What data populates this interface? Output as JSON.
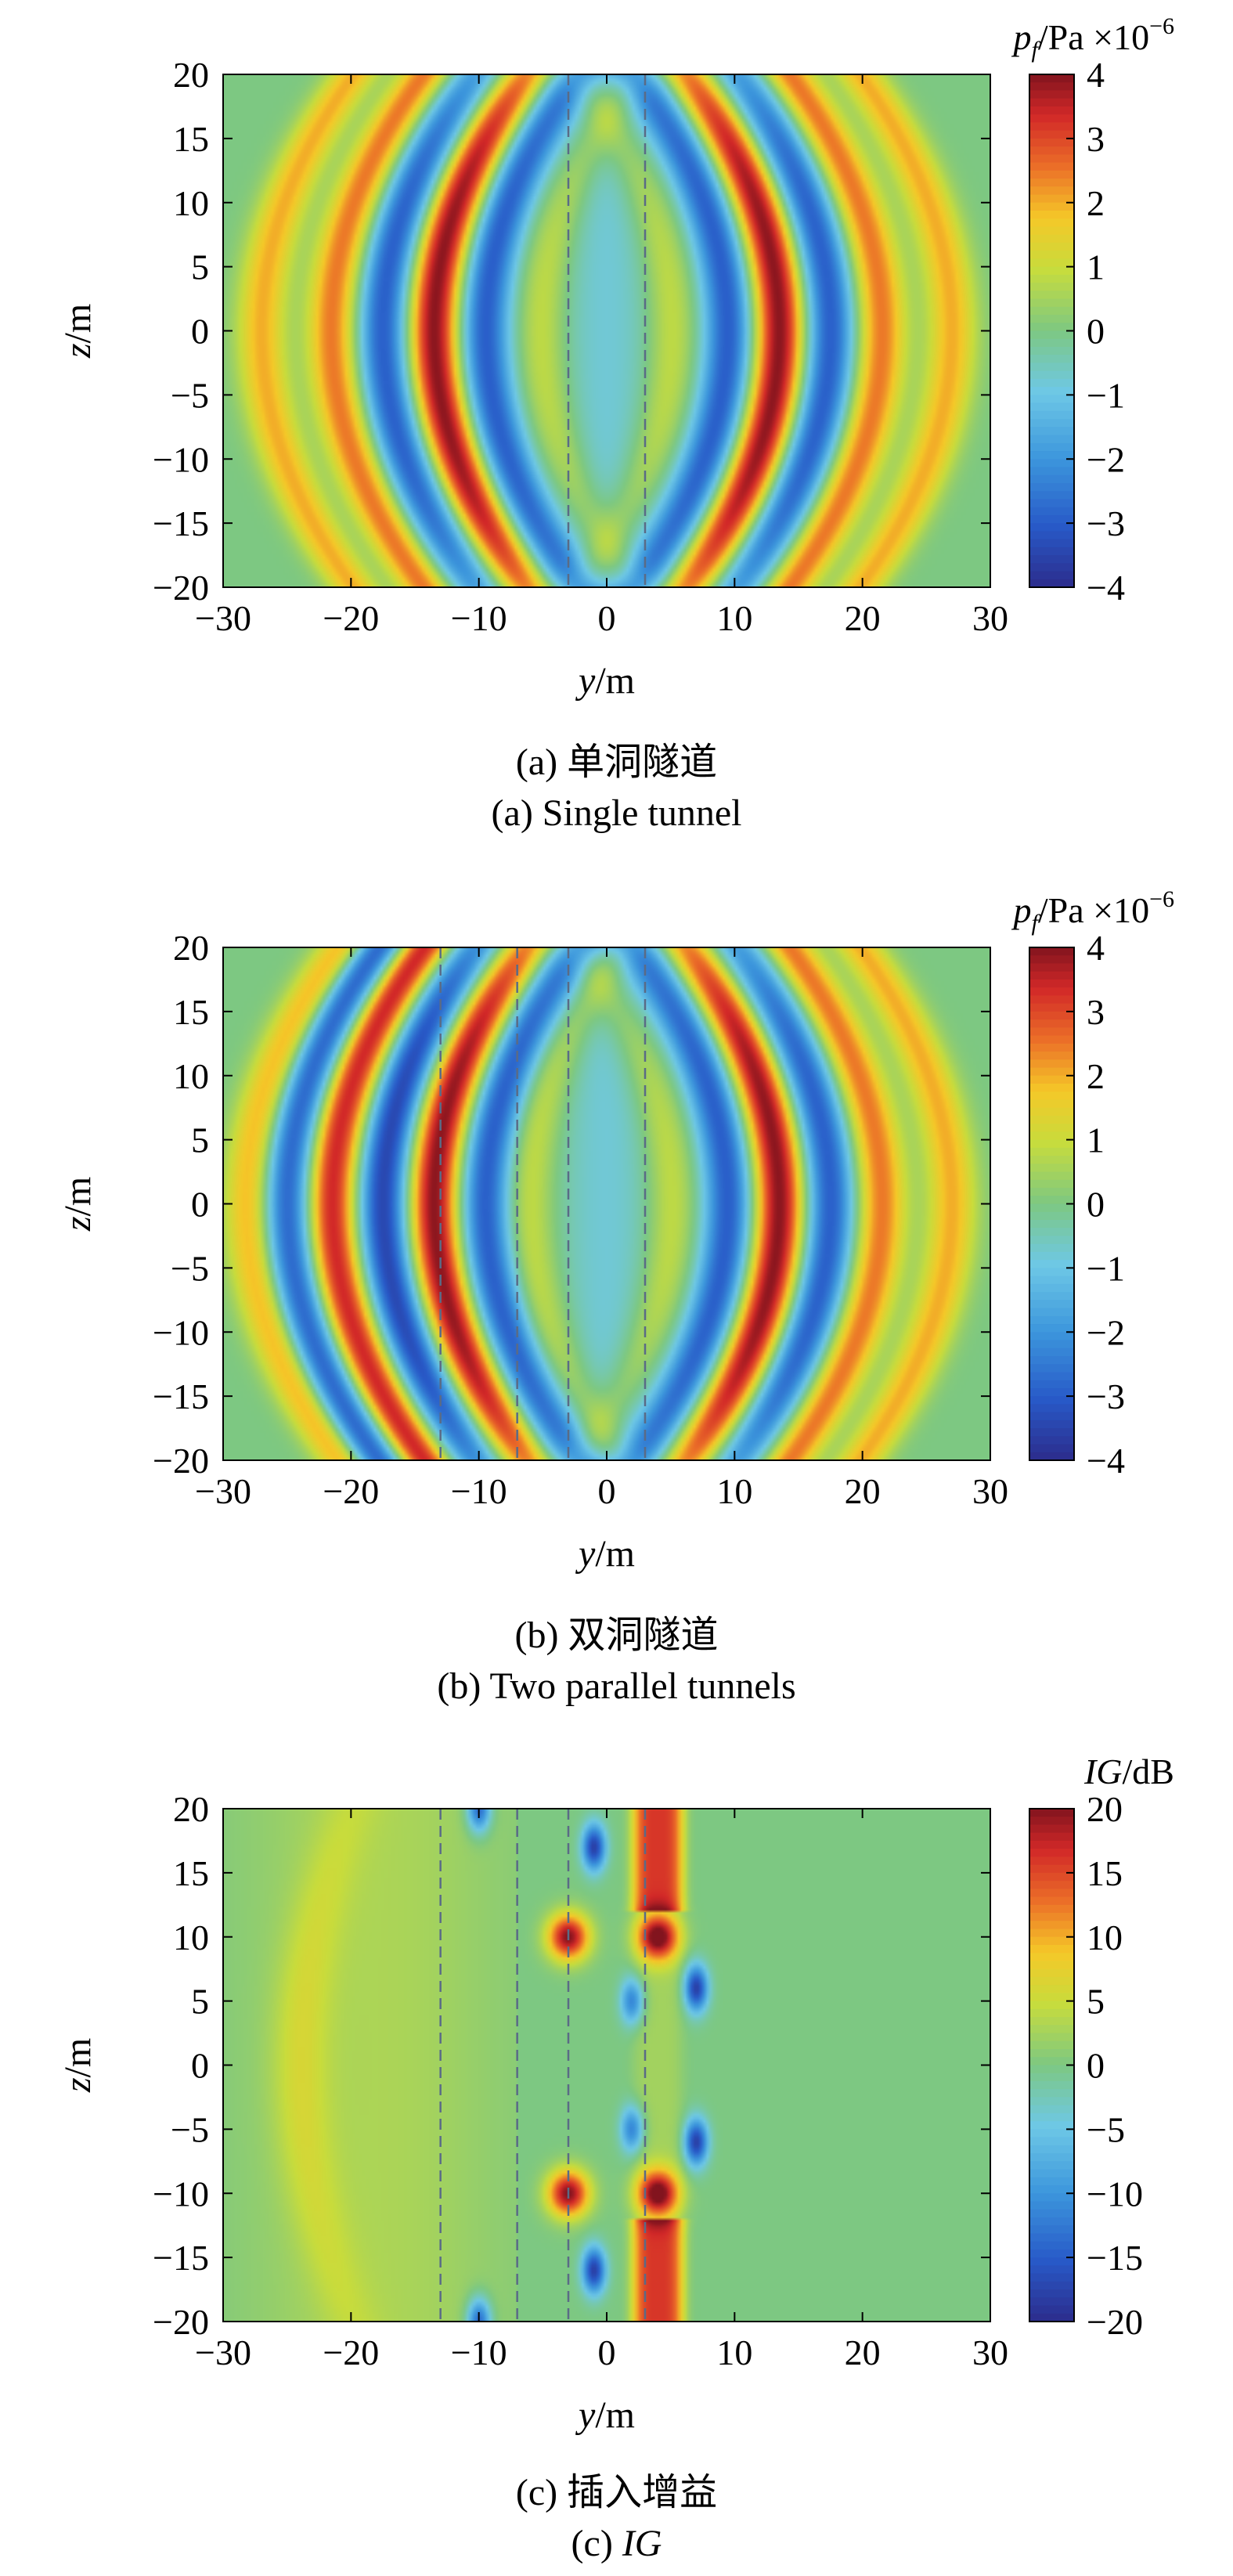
{
  "chart_data": [
    {
      "type": "heatmap",
      "panel": "a",
      "caption_cn": "(a) 单洞隧道",
      "caption_en": "(a) Single tunnel",
      "xlabel_var": "y",
      "xlabel_unit": "/m",
      "ylabel_var": "z",
      "ylabel_unit": "/m",
      "xlim": [
        -30,
        30
      ],
      "ylim": [
        -20,
        20
      ],
      "xticks": [
        -30,
        -20,
        -10,
        0,
        10,
        20,
        30
      ],
      "yticks": [
        -20,
        -15,
        -10,
        -5,
        0,
        5,
        10,
        15,
        20
      ],
      "colorbar": {
        "label_var": "p",
        "label_sub": "f",
        "label_unit": "/Pa ×10",
        "label_exp": "−6",
        "range": [
          -4,
          4
        ],
        "ticks": [
          4,
          3,
          2,
          1,
          0,
          -1,
          -2,
          -3,
          -4
        ]
      },
      "tunnel_lines_y": [
        -3,
        3
      ],
      "field": {
        "description_values": "pressure pattern: symmetric arcs about y=0 centered near |y|≈14, peak +4, troughs -4",
        "left_arcs": [
          {
            "y": -27,
            "value": 2
          },
          {
            "y": -21.5,
            "value": 2.5
          },
          {
            "y": -17.5,
            "value": -3
          },
          {
            "y": -13.5,
            "value": 4
          },
          {
            "y": -9.5,
            "value": -3
          },
          {
            "y": -5,
            "value": 1
          }
        ],
        "right_arcs": [
          {
            "y": 5,
            "value": 1
          },
          {
            "y": 9.5,
            "value": -3
          },
          {
            "y": 13.5,
            "value": 4
          },
          {
            "y": 17.5,
            "value": -3
          },
          {
            "y": 21.5,
            "value": 2.5
          },
          {
            "y": 27,
            "value": 2
          }
        ]
      }
    },
    {
      "type": "heatmap",
      "panel": "b",
      "caption_cn": "(b) 双洞隧道",
      "caption_en": "(b) Two parallel tunnels",
      "xlabel_var": "y",
      "xlabel_unit": "/m",
      "ylabel_var": "z",
      "ylabel_unit": "/m",
      "xlim": [
        -30,
        30
      ],
      "ylim": [
        -20,
        20
      ],
      "xticks": [
        -30,
        -20,
        -10,
        0,
        10,
        20,
        30
      ],
      "yticks": [
        -20,
        -15,
        -10,
        -5,
        0,
        5,
        10,
        15,
        20
      ],
      "colorbar": {
        "label_var": "p",
        "label_sub": "f",
        "label_unit": "/Pa ×10",
        "label_exp": "−6",
        "range": [
          -4,
          4
        ],
        "ticks": [
          4,
          3,
          2,
          1,
          0,
          -1,
          -2,
          -3,
          -4
        ]
      },
      "tunnel_lines_y": [
        -13,
        -7,
        -3,
        3
      ],
      "field": {
        "left_arcs": [
          {
            "y": -28,
            "value": 2
          },
          {
            "y": -25,
            "value": -3
          },
          {
            "y": -21.5,
            "value": 3.5
          },
          {
            "y": -17.5,
            "value": -3.5
          },
          {
            "y": -13.5,
            "value": 4
          },
          {
            "y": -9.5,
            "value": -3
          },
          {
            "y": -6,
            "value": 1
          }
        ],
        "right_arcs": [
          {
            "y": 5,
            "value": 1
          },
          {
            "y": 9.5,
            "value": -3
          },
          {
            "y": 13.5,
            "value": 4
          },
          {
            "y": 17.5,
            "value": -3
          },
          {
            "y": 21.5,
            "value": 2.5
          },
          {
            "y": 27,
            "value": 2
          }
        ]
      }
    },
    {
      "type": "heatmap",
      "panel": "c",
      "caption_cn": "(c) 插入增益",
      "caption_en_prefix": "(c) ",
      "caption_en_italic": "IG",
      "xlabel_var": "y",
      "xlabel_unit": "/m",
      "ylabel_var": "z",
      "ylabel_unit": "/m",
      "xlim": [
        -30,
        30
      ],
      "ylim": [
        -20,
        20
      ],
      "xticks": [
        -30,
        -20,
        -10,
        0,
        10,
        20,
        30
      ],
      "yticks": [
        -20,
        -15,
        -10,
        -5,
        0,
        5,
        10,
        15,
        20
      ],
      "colorbar": {
        "label_var": "IG",
        "label_unit": "/dB",
        "range": [
          -20,
          20
        ],
        "ticks": [
          20,
          15,
          10,
          5,
          0,
          -5,
          -10,
          -15,
          -20
        ]
      },
      "tunnel_lines_y": [
        -13,
        -7,
        -3,
        3
      ],
      "field": {
        "background_value": 0,
        "left_region_value": 3,
        "left_arc": {
          "y": -24,
          "value": 7
        },
        "hot_spots": [
          {
            "y": -3,
            "z": 10,
            "value": 20
          },
          {
            "y": 4,
            "z": 10,
            "value": 20
          },
          {
            "y": -3,
            "z": -10,
            "value": 20
          },
          {
            "y": 4,
            "z": -10,
            "value": 20
          }
        ],
        "cold_spots": [
          {
            "y": -1,
            "z": 17,
            "value": -18
          },
          {
            "y": -1,
            "z": -16,
            "value": -18
          },
          {
            "y": 7,
            "z": 6,
            "value": -18
          },
          {
            "y": 7,
            "z": -6,
            "value": -18
          },
          {
            "y": -10,
            "z": 20,
            "value": -15
          },
          {
            "y": -10,
            "z": -20,
            "value": -15
          },
          {
            "y": 2,
            "z": 5,
            "value": -12
          },
          {
            "y": 2,
            "z": -5,
            "value": -12
          }
        ],
        "red_band": {
          "y_from": 2,
          "y_to": 6,
          "value": 16
        }
      }
    }
  ],
  "colors": {
    "dashed_line": "#5a6b86",
    "frame": "#000000"
  }
}
